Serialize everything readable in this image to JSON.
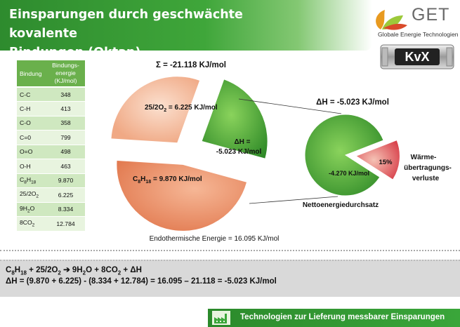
{
  "header": {
    "title_line1": "Einsparungen durch geschwächte kovalente",
    "title_line2": "Bindungen (Oktan)"
  },
  "logo": {
    "brand": "GET",
    "subtitle": "Globale Energie Technologien",
    "badge": "KvX"
  },
  "bond_table": {
    "col1": "Bindung",
    "col2_line1": "Bindungs-",
    "col2_line2": "energie",
    "col2_line3": "(KJ/mol)",
    "rows": [
      {
        "name_main": "C-C",
        "name_sub": "",
        "name_tail": "",
        "value": "348"
      },
      {
        "name_main": "C-H",
        "name_sub": "",
        "name_tail": "",
        "value": "413"
      },
      {
        "name_main": "C-O",
        "name_sub": "",
        "name_tail": "",
        "value": "358"
      },
      {
        "name_main": "C=0",
        "name_sub": "",
        "name_tail": "",
        "value": "799"
      },
      {
        "name_main": "O=O",
        "name_sub": "",
        "name_tail": "",
        "value": "498"
      },
      {
        "name_main": "O-H",
        "name_sub": "",
        "name_tail": "",
        "value": "463"
      },
      {
        "name_main": "C",
        "name_sub": "8",
        "name_tail": "H",
        "name_sub2": "18",
        "value": "9.870"
      },
      {
        "name_main": "25/2O",
        "name_sub": "2",
        "name_tail": "",
        "value": "6.225"
      },
      {
        "name_main": "9H",
        "name_sub": "2",
        "name_tail": "O",
        "value": "8.334"
      },
      {
        "name_main": "8CO",
        "name_sub": "2",
        "name_tail": "",
        "value": "12.784"
      }
    ]
  },
  "chart_data": [
    {
      "type": "pie",
      "title": "Σ = -21.118 KJ/mol",
      "caption": "Endothermische Energie = 16.095 KJ/mol",
      "slices": [
        {
          "label_main": "25/2O",
          "label_sub": "2",
          "label_tail": " = 6.225 KJ/mol",
          "value": 6.225,
          "color": "#f2b898"
        },
        {
          "label_main": "C",
          "label_sub": "8",
          "label_mid": "H",
          "label_sub2": "18",
          "label_tail": " = 9.870 KJ/mol",
          "value": 9.87,
          "color": "#e88a62"
        },
        {
          "label_line1": "ΔH =",
          "label_line2": "-5.023 KJ/mol",
          "value": 5.023,
          "color": "#3f9b32"
        }
      ]
    },
    {
      "type": "pie",
      "title": "ΔH = -5.023 KJ/mol",
      "caption": "Nettoenergiedurchsatz",
      "slices": [
        {
          "label": "-4.270 KJ/mol",
          "value": 85,
          "color": "#3f9b32"
        },
        {
          "label": "15%",
          "value": 15,
          "color": "#e05050"
        }
      ],
      "side_label_line1": "Wärme-",
      "side_label_line2": "übertragungs-",
      "side_label_line3": "verluste"
    }
  ],
  "formula": {
    "line1_a": "C",
    "line1_sub1": "8",
    "line1_b": "H",
    "line1_sub2": "18",
    "line1_c": " + 25/2O",
    "line1_sub3": "2",
    "line1_arrow": " ➔ ",
    "line1_d": "9H",
    "line1_sub4": "2",
    "line1_e": "O + 8CO",
    "line1_sub5": "2",
    "line1_f": " + ΔH",
    "line2": "ΔH = (9.870 + 6.225) - (8.334 + 12.784) = 16.095 – 21.118 = -5.023 KJ/mol"
  },
  "footer": {
    "label": "Technologien zur Lieferung messbarer Einsparungen"
  },
  "colors": {
    "green": "#3f9b32",
    "salmon_light": "#f2b898",
    "salmon_dark": "#e88a62",
    "red": "#e05050"
  }
}
